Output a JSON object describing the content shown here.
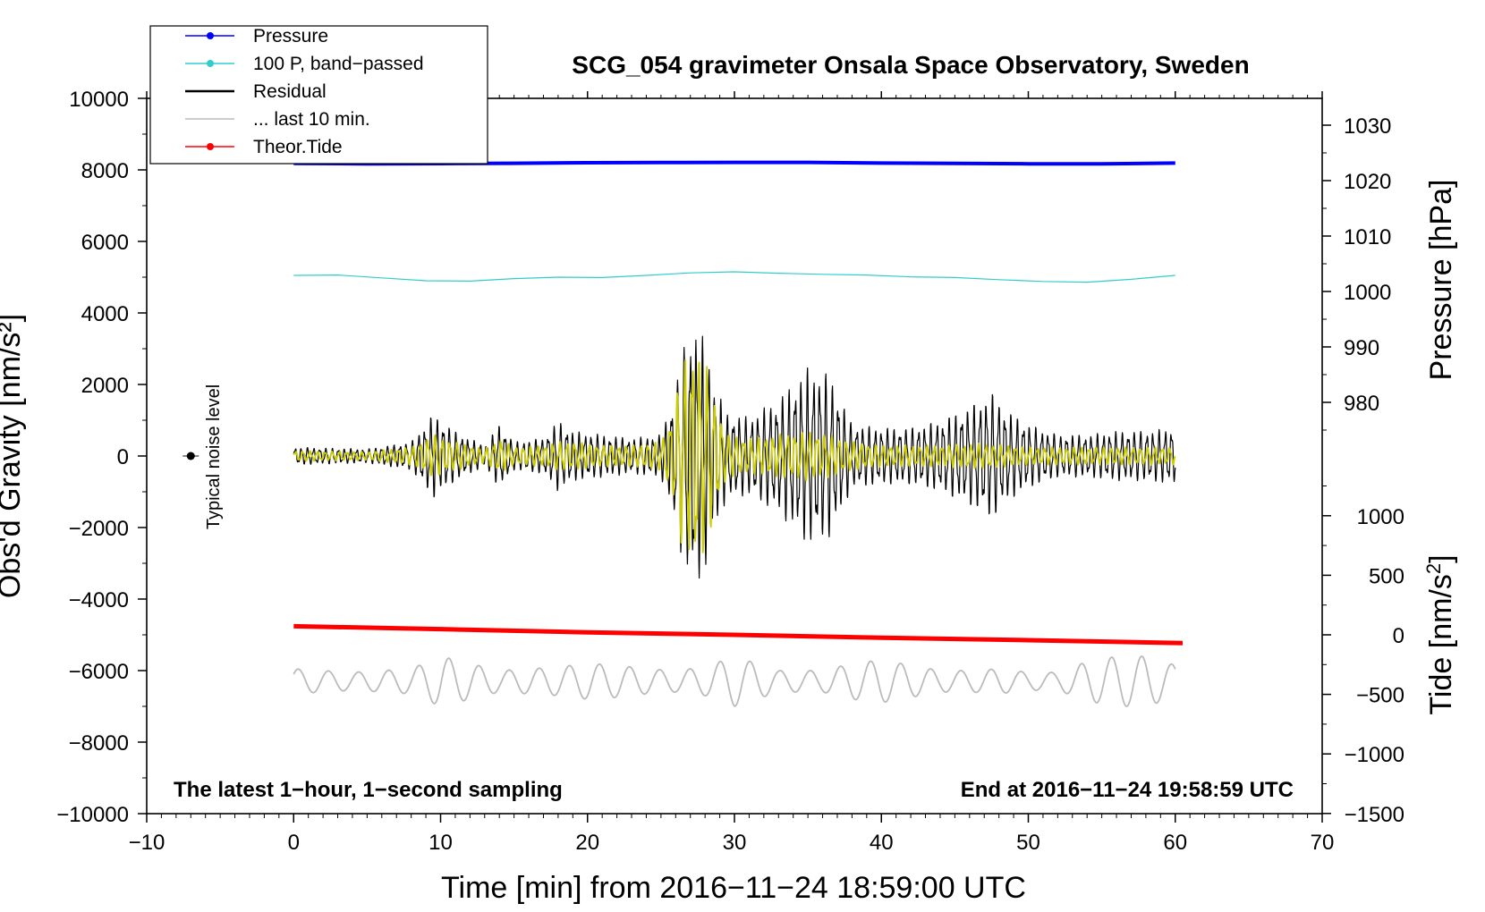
{
  "chart_data": {
    "type": "line",
    "title": "SCG_054 gravimeter Onsala Space Observatory, Sweden",
    "xlabel": "Time [min] from 2016−11−24 18:59:00 UTC",
    "ylabel_left": "Obs'd Gravity [nm/s²]",
    "ylabel_right_pressure": "Pressure [hPa]",
    "ylabel_right_tide_base": "Tide [nm/s",
    "ylabel_right_tide_sup": "2",
    "ylabel_right_tide_end": "]",
    "xlim": [
      -10,
      70
    ],
    "ylim": [
      -10000,
      10000
    ],
    "x_ticks": [
      -10,
      0,
      10,
      20,
      30,
      40,
      50,
      60,
      70
    ],
    "x_tick_labels": [
      "−10",
      "0",
      "10",
      "20",
      "30",
      "40",
      "50",
      "60",
      "70"
    ],
    "y_ticks": [
      10000,
      8000,
      6000,
      4000,
      2000,
      0,
      -2000,
      -4000,
      -6000,
      -8000,
      -10000
    ],
    "y_tick_labels": [
      "10000",
      "8000",
      "6000",
      "4000",
      "2000",
      "0",
      "−2000",
      "−4000",
      "−6000",
      "−8000",
      "−10000"
    ],
    "pressure_ticks": [
      1030,
      1020,
      1010,
      1000,
      990,
      980
    ],
    "pressure_tick_labels": [
      "1030",
      "1020",
      "1010",
      "1000",
      "990",
      "980"
    ],
    "pressure_axis": {
      "ref_value": 1000,
      "ref_gravity": 4600,
      "gravity_per_hpa": 155
    },
    "tide_ticks": [
      1000,
      500,
      0,
      -500,
      -1000,
      -1500
    ],
    "tide_tick_labels": [
      "1000",
      "500",
      "0",
      "−500",
      "−1000",
      "−1500"
    ],
    "tide_axis": {
      "ref_value": 0,
      "ref_gravity": -5000,
      "gravity_per_unit": 3.33
    },
    "legend": {
      "placement": "top-left",
      "entries": [
        {
          "label": "Pressure",
          "color": "#0000ff",
          "marker": true
        },
        {
          "label": "100 P, band−passed",
          "color": "#33cccc",
          "marker": true
        },
        {
          "label": "Residual",
          "color": "#000000",
          "marker": false
        },
        {
          "label": "... last 10 min.",
          "color": "#bbbbbb",
          "marker": false
        },
        {
          "label": "Theor.Tide",
          "color": "#ff0000",
          "marker": true
        }
      ]
    },
    "noise_label": "Typical noise level",
    "noise_marker": {
      "x": -7,
      "y": 0
    },
    "footnote_left": "The latest 1−hour, 1−second sampling",
    "footnote_right": "End at 2016−11−24 19:58:59 UTC",
    "series": [
      {
        "name": "Pressure",
        "color": "#0000ff",
        "width": 4,
        "x": [
          0,
          5,
          10,
          15,
          20,
          25,
          30,
          35,
          40,
          45,
          50,
          55,
          60
        ],
        "y": [
          8180,
          8170,
          8175,
          8185,
          8200,
          8205,
          8210,
          8210,
          8190,
          8180,
          8170,
          8170,
          8190
        ]
      },
      {
        "name": "100 P, band-passed",
        "color": "#33cccc",
        "width": 1.2,
        "x": [
          0,
          3,
          6,
          9,
          12,
          15,
          18,
          21,
          24,
          27,
          30,
          33,
          36,
          39,
          42,
          45,
          48,
          51,
          54,
          57,
          60
        ],
        "y": [
          5050,
          5060,
          4980,
          4900,
          4890,
          4960,
          5000,
          4990,
          5050,
          5120,
          5150,
          5110,
          5080,
          5060,
          5010,
          4990,
          4930,
          4880,
          4860,
          4940,
          5050
        ]
      },
      {
        "name": "Theor.Tide",
        "color": "#ff0000",
        "width": 5,
        "x": [
          0,
          10,
          20,
          30,
          40,
          50,
          60.5
        ],
        "y": [
          -4760,
          -4840,
          -4930,
          -5000,
          -5080,
          -5150,
          -5230
        ]
      }
    ],
    "residual_envelope": {
      "color": "#000000",
      "x": [
        0,
        5,
        8,
        9.5,
        11,
        13,
        14,
        15,
        17,
        18,
        19,
        21,
        23,
        25,
        25.8,
        26.5,
        27.3,
        28,
        28.7,
        29.5,
        31,
        33,
        35,
        36.5,
        38,
        40,
        42,
        44,
        46,
        47.5,
        48.5,
        50,
        52,
        54,
        56,
        58,
        60
      ],
      "amp": [
        250,
        200,
        400,
        1200,
        700,
        300,
        900,
        400,
        500,
        1000,
        700,
        600,
        500,
        600,
        1600,
        3000,
        3800,
        3200,
        2000,
        1200,
        1100,
        1600,
        2500,
        2300,
        900,
        800,
        800,
        1000,
        1400,
        1800,
        1300,
        900,
        600,
        600,
        700,
        700,
        800
      ]
    },
    "filtered_envelope": {
      "color": "#cccc00",
      "x": [
        0,
        5,
        8,
        9.5,
        11,
        13,
        14,
        15,
        17,
        18,
        19,
        21,
        23,
        25,
        25.8,
        26.5,
        27.3,
        28,
        28.7,
        29.5,
        31,
        33,
        35,
        36.5,
        38,
        40,
        42,
        44,
        46,
        47.5,
        48.5,
        50,
        52,
        54,
        56,
        58,
        60
      ],
      "amp": [
        150,
        120,
        250,
        600,
        400,
        200,
        500,
        250,
        300,
        400,
        400,
        300,
        300,
        400,
        1200,
        2700,
        3200,
        2700,
        1600,
        600,
        500,
        600,
        700,
        600,
        400,
        300,
        300,
        300,
        350,
        350,
        300,
        250,
        250,
        250,
        250,
        250,
        250
      ]
    },
    "last10_envelope": {
      "color": "#bbbbbb",
      "base": -6300,
      "x": [
        0,
        4,
        8,
        10,
        12,
        14,
        16,
        18,
        20,
        22,
        24,
        26,
        28,
        30,
        31.5,
        33,
        36,
        38,
        40,
        42,
        44,
        46,
        48,
        50,
        52,
        54,
        56,
        58,
        60
      ],
      "amp": [
        350,
        250,
        350,
        700,
        500,
        300,
        350,
        400,
        500,
        450,
        350,
        300,
        400,
        700,
        500,
        300,
        300,
        500,
        600,
        450,
        300,
        300,
        350,
        250,
        250,
        550,
        700,
        700,
        450
      ]
    }
  }
}
